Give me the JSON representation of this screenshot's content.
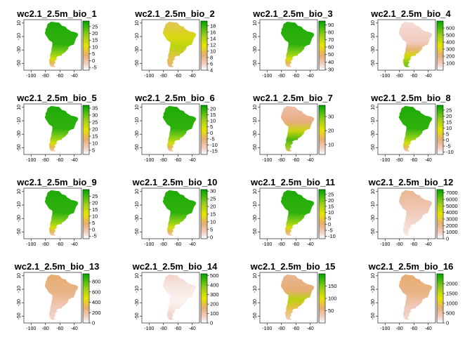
{
  "chart_data": {
    "type": "heatmap",
    "layout": {
      "rows": 4,
      "cols": 4
    },
    "x_ticks": [
      -100,
      -80,
      -60,
      -40
    ],
    "y_ticks": [
      -50,
      -30,
      -10,
      10
    ],
    "xlim": [
      -110,
      -30
    ],
    "ylim": [
      -60,
      15
    ],
    "legend_placement": "right",
    "colors": {
      "low": "#ffffff",
      "pink": "#efc8b8",
      "tan": "#e8ad74",
      "yellow": "#e6e400",
      "green_light": "#9ccf1b",
      "green": "#35b40c",
      "green_dark": "#00a600"
    },
    "panels": [
      {
        "title": "wc2.1_2.5m_bio_1",
        "legend": {
          "range": [
            -7,
            29
          ],
          "ticks": [
            25,
            20,
            15,
            10,
            5,
            0,
            -5
          ]
        },
        "pattern": "green"
      },
      {
        "title": "wc2.1_2.5m_bio_2",
        "legend": {
          "range": [
            4,
            19.5
          ],
          "ticks": [
            18,
            16,
            14,
            12,
            10,
            8,
            6,
            4
          ]
        },
        "pattern": "yellow"
      },
      {
        "title": "wc2.1_2.5m_bio_3",
        "legend": {
          "range": [
            29,
            95
          ],
          "ticks": [
            90,
            80,
            70,
            60,
            50,
            40,
            30
          ]
        },
        "pattern": "green"
      },
      {
        "title": "wc2.1_2.5m_bio_4",
        "legend": {
          "range": [
            0,
            700
          ],
          "ticks": [
            600,
            500,
            400,
            300,
            200,
            100
          ]
        },
        "pattern": "pinkmix"
      },
      {
        "title": "wc2.1_2.5m_bio_5",
        "legend": {
          "range": [
            2,
            37
          ],
          "ticks": [
            35,
            30,
            25,
            20,
            15,
            10,
            5
          ]
        },
        "pattern": "green"
      },
      {
        "title": "wc2.1_2.5m_bio_6",
        "legend": {
          "range": [
            -18,
            23
          ],
          "ticks": [
            20,
            15,
            10,
            5,
            0,
            -5,
            -10,
            -15
          ]
        },
        "pattern": "green"
      },
      {
        "title": "wc2.1_2.5m_bio_7",
        "legend": {
          "range": [
            3,
            38
          ],
          "ticks": [
            30,
            20,
            10
          ]
        },
        "pattern": "pinkgreen"
      },
      {
        "title": "wc2.1_2.5m_bio_8",
        "legend": {
          "range": [
            -12,
            29
          ],
          "ticks": [
            25,
            20,
            15,
            10,
            5,
            0,
            -5,
            -10
          ]
        },
        "pattern": "green"
      },
      {
        "title": "wc2.1_2.5m_bio_9",
        "legend": {
          "range": [
            -7,
            30
          ],
          "ticks": [
            25,
            20,
            15,
            10,
            5,
            0,
            -5
          ]
        },
        "pattern": "green"
      },
      {
        "title": "wc2.1_2.5m_bio_10",
        "legend": {
          "range": [
            -1,
            31
          ],
          "ticks": [
            30,
            25,
            20,
            15,
            10,
            5,
            0
          ]
        },
        "pattern": "green"
      },
      {
        "title": "wc2.1_2.5m_bio_11",
        "legend": {
          "range": [
            -12,
            29
          ],
          "ticks": [
            25,
            20,
            15,
            10,
            5,
            0,
            -5,
            -10
          ]
        },
        "pattern": "green"
      },
      {
        "title": "wc2.1_2.5m_bio_12",
        "legend": {
          "range": [
            0,
            7500
          ],
          "ticks": [
            7000,
            6000,
            5000,
            4000,
            3000,
            2000,
            1000,
            0
          ]
        },
        "pattern": "pink"
      },
      {
        "title": "wc2.1_2.5m_bio_13",
        "legend": {
          "range": [
            0,
            950
          ],
          "ticks": [
            800,
            600,
            400,
            200,
            0
          ]
        },
        "pattern": "tan"
      },
      {
        "title": "wc2.1_2.5m_bio_14",
        "legend": {
          "range": [
            0,
            520
          ],
          "ticks": [
            500,
            400,
            300,
            200,
            100,
            0
          ]
        },
        "pattern": "white"
      },
      {
        "title": "wc2.1_2.5m_bio_15",
        "legend": {
          "range": [
            0,
            200
          ],
          "ticks": [
            150,
            100,
            50
          ]
        },
        "pattern": "pinkgreen2"
      },
      {
        "title": "wc2.1_2.5m_bio_16",
        "legend": {
          "range": [
            0,
            2500
          ],
          "ticks": [
            2000,
            1500,
            1000,
            500,
            0
          ]
        },
        "pattern": "tan"
      }
    ]
  }
}
